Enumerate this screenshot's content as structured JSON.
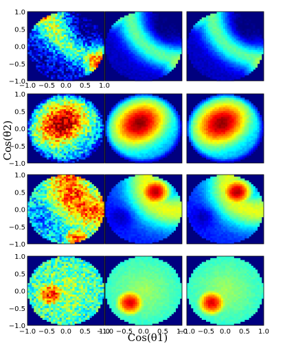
{
  "chart_data": {
    "type": "heatmap",
    "layout": {
      "rows": 4,
      "cols": 3
    },
    "xlabel": "Cos(θ1)",
    "ylabel": "Cos(θ2)",
    "xlim": [
      -1.0,
      1.0
    ],
    "ylim": [
      -1.0,
      1.0
    ],
    "xticks": [
      "−1.0",
      "−0.5",
      "0.0",
      "0.5",
      "1.0"
    ],
    "yticks": [
      "1.0",
      "0.5",
      "0.0",
      "−0.5",
      "−1.0"
    ],
    "colormap": [
      "#00007f",
      "#0000ff",
      "#007fff",
      "#00ffff",
      "#7fff7f",
      "#ffff00",
      "#ff7f00",
      "#ff0000",
      "#7f0000"
    ],
    "background_color": "#00007f",
    "rows": [
      {
        "pattern": "arc-with-corners",
        "panels": [
          {
            "col": 1,
            "noisy": true,
            "peaks": [
              [
                -0.65,
                0.95,
                0.85
              ],
              [
                0.85,
                -0.45,
                0.8
              ]
            ]
          },
          {
            "col": 2,
            "noisy": false,
            "peaks": [
              [
                -0.7,
                0.95,
                0.55
              ],
              [
                0.9,
                -0.45,
                0.55
              ]
            ]
          },
          {
            "col": 3,
            "noisy": false,
            "peaks": [
              [
                -0.7,
                0.95,
                0.55
              ],
              [
                0.9,
                -0.45,
                0.55
              ]
            ]
          }
        ]
      },
      {
        "pattern": "central-blob",
        "panels": [
          {
            "col": 1,
            "noisy": true,
            "peaks": [
              [
                -0.15,
                0.2,
                0.9
              ]
            ]
          },
          {
            "col": 2,
            "noisy": false,
            "peaks": [
              [
                -0.1,
                0.15,
                0.95
              ]
            ]
          },
          {
            "col": 3,
            "noisy": false,
            "peaks": [
              [
                -0.05,
                0.15,
                0.95
              ]
            ]
          }
        ]
      },
      {
        "pattern": "ring-with-peak",
        "panels": [
          {
            "col": 1,
            "noisy": true,
            "peaks": [
              [
                0.3,
                0.45,
                0.85
              ],
              [
                0.3,
                -0.85,
                0.8
              ]
            ]
          },
          {
            "col": 2,
            "noisy": false,
            "peaks": [
              [
                0.3,
                0.5,
                0.95
              ]
            ]
          },
          {
            "col": 3,
            "noisy": false,
            "peaks": [
              [
                0.3,
                0.5,
                0.95
              ]
            ]
          }
        ]
      },
      {
        "pattern": "broad-disk",
        "panels": [
          {
            "col": 1,
            "noisy": true,
            "peaks": [
              [
                -0.4,
                -0.1,
                0.85
              ]
            ]
          },
          {
            "col": 2,
            "noisy": false,
            "peaks": [
              [
                -0.35,
                -0.35,
                0.9
              ]
            ]
          },
          {
            "col": 3,
            "noisy": false,
            "peaks": [
              [
                -0.35,
                -0.35,
                0.9
              ]
            ]
          }
        ]
      }
    ]
  }
}
